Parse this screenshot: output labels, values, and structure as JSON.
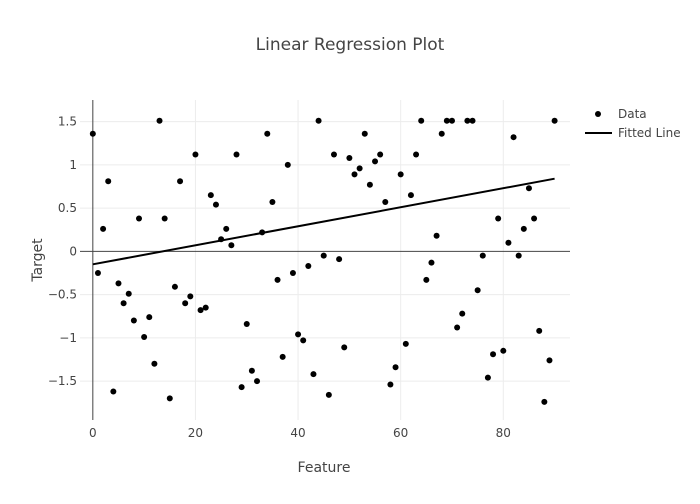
{
  "chart_data": {
    "type": "scatter",
    "title": "Linear Regression Plot",
    "xlabel": "Feature",
    "ylabel": "Target",
    "xlim": [
      -2.5,
      93
    ],
    "ylim": [
      -1.95,
      1.75
    ],
    "xticks": [
      0,
      20,
      40,
      60,
      80
    ],
    "xtick_labels": [
      "0",
      "20",
      "40",
      "60",
      "80"
    ],
    "yticks": [
      -1.5,
      -1,
      -0.5,
      0,
      0.5,
      1,
      1.5
    ],
    "ytick_labels": [
      "−1.5",
      "−1",
      "−0.5",
      "0",
      "0.5",
      "1",
      "1.5"
    ],
    "grid": true,
    "legend": {
      "position": "top-right",
      "entries": [
        "Data",
        "Fitted Line"
      ]
    },
    "series": [
      {
        "name": "Data",
        "mode": "markers",
        "color": "#000000",
        "x": [
          0,
          1,
          2,
          3,
          4,
          5,
          6,
          7,
          8,
          9,
          10,
          11,
          12,
          13,
          14,
          15,
          16,
          17,
          18,
          19,
          20,
          21,
          22,
          23,
          24,
          25,
          26,
          27,
          28,
          29,
          30,
          31,
          32,
          33,
          34,
          35,
          36,
          37,
          38,
          39,
          40,
          41,
          42,
          43,
          44,
          45,
          46,
          47,
          48,
          49,
          50,
          51,
          52,
          53,
          54,
          55,
          56,
          57,
          58,
          59,
          60,
          61,
          62,
          63,
          64,
          65,
          66,
          67,
          68,
          69,
          70,
          71,
          72,
          73,
          74,
          75,
          76,
          77,
          78,
          79,
          80,
          81,
          82,
          83,
          84,
          85,
          86,
          87,
          88,
          89,
          90
        ],
        "y": [
          1.36,
          -0.25,
          0.26,
          0.81,
          -1.62,
          -0.37,
          -0.6,
          -0.49,
          -0.8,
          0.38,
          -0.99,
          -0.76,
          -1.3,
          1.51,
          0.38,
          -1.7,
          -0.41,
          0.81,
          -0.6,
          -0.52,
          1.12,
          -0.68,
          -0.65,
          0.65,
          0.54,
          0.14,
          0.26,
          0.07,
          1.12,
          -1.57,
          -0.84,
          -1.38,
          -1.5,
          0.22,
          1.36,
          0.57,
          -0.33,
          -1.22,
          1.0,
          -0.25,
          -0.96,
          -1.03,
          -0.17,
          -1.42,
          1.51,
          -0.05,
          -1.66,
          1.12,
          -0.09,
          -1.11,
          1.08,
          0.89,
          0.96,
          1.36,
          0.77,
          1.04,
          1.12,
          0.57,
          -1.54,
          -1.34,
          0.89,
          -1.07,
          0.65,
          1.12,
          1.51,
          -0.33,
          -0.13,
          0.18,
          1.36,
          1.51,
          1.51,
          -0.88,
          -0.72,
          1.51,
          1.51,
          -0.45,
          -0.05,
          -1.46,
          -1.19,
          0.38,
          -1.15,
          0.1,
          1.32,
          -0.05,
          0.26,
          0.73,
          0.38,
          -0.92,
          -1.74,
          -1.26,
          1.51
        ]
      },
      {
        "name": "Fitted Line",
        "mode": "line",
        "color": "#000000",
        "x": [
          0,
          90
        ],
        "y": [
          -0.15,
          0.84
        ]
      }
    ]
  }
}
